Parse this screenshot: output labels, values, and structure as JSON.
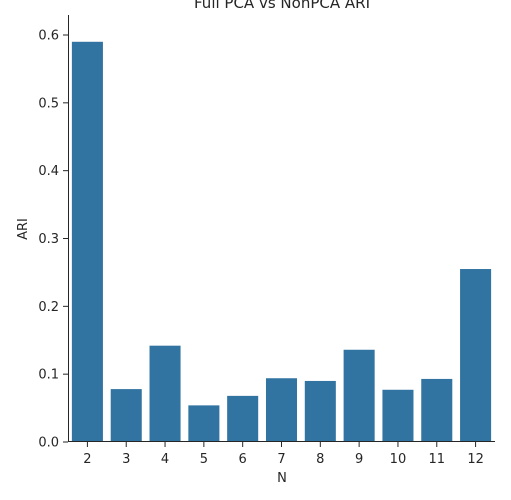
{
  "chart_data": {
    "type": "bar",
    "title": "Full PCA vs NonPCA ARI",
    "xlabel": "N",
    "ylabel": "ARI",
    "categories": [
      "2",
      "3",
      "4",
      "5",
      "6",
      "7",
      "8",
      "9",
      "10",
      "11",
      "12"
    ],
    "values": [
      0.59,
      0.078,
      0.142,
      0.054,
      0.068,
      0.094,
      0.09,
      0.136,
      0.077,
      0.093,
      0.255
    ],
    "ylim": [
      0,
      0.62
    ],
    "yticks": [
      "0.0",
      "0.1",
      "0.2",
      "0.3",
      "0.4",
      "0.5",
      "0.6"
    ],
    "grid": false,
    "bar_color": "#3274a1"
  }
}
